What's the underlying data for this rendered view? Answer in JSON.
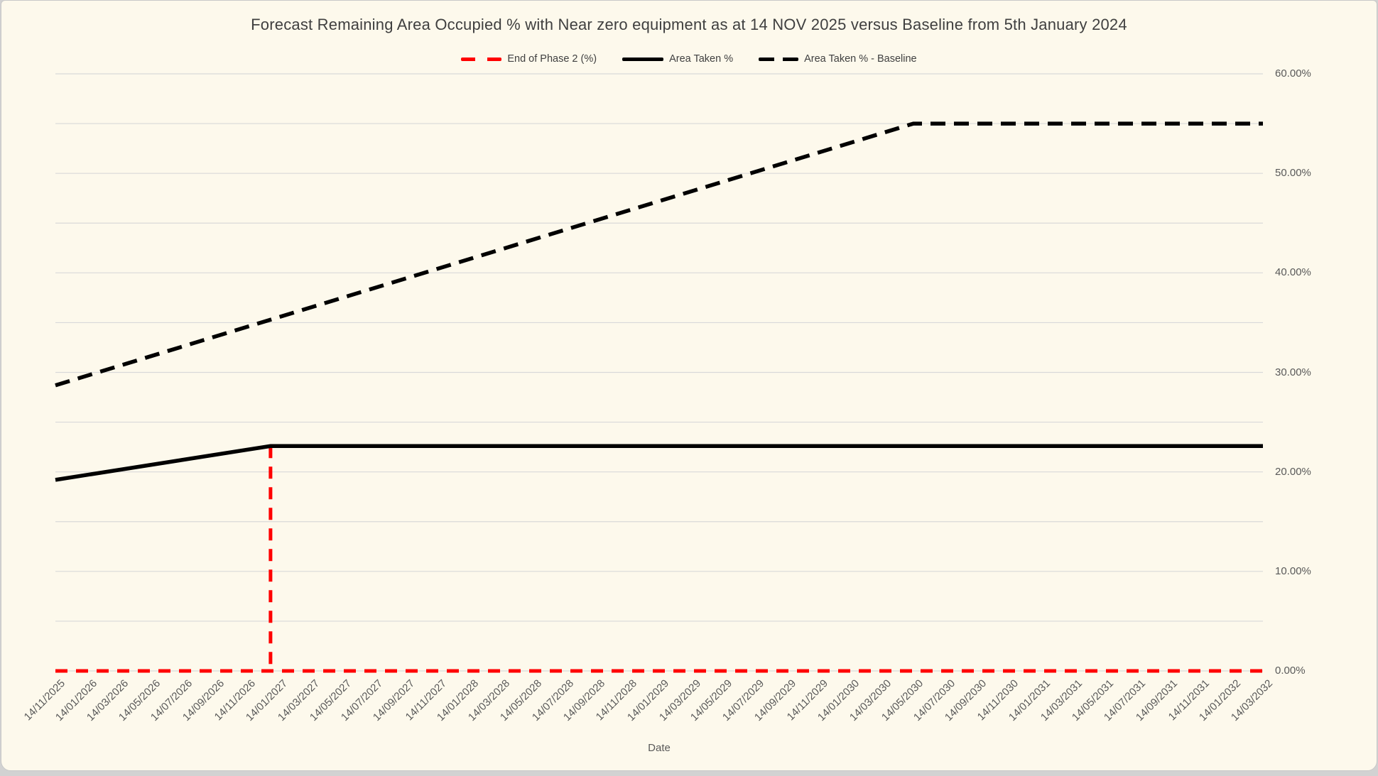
{
  "legend": [
    {
      "label": "End of Phase 2 (%)",
      "color": "#FF0000",
      "style": "dashed"
    },
    {
      "label": "Area Taken %",
      "color": "#000000",
      "style": "solid"
    },
    {
      "label": "Area Taken % - Baseline",
      "color": "#000000",
      "style": "dashed"
    }
  ],
  "chart_data": {
    "type": "line",
    "title": "Forecast Remaining Area Occupied % with Near zero equipment as at 14 NOV 2025 versus Baseline from 5th January 2024",
    "xlabel": "Date",
    "ylabel": "",
    "ylim": [
      0,
      60
    ],
    "grid": true,
    "gridline_step_pct": 5,
    "legend_position": "top-center",
    "y_ticks": [
      {
        "value": 0,
        "label": "0.00%"
      },
      {
        "value": 10,
        "label": "10.00%"
      },
      {
        "value": 20,
        "label": "20.00%"
      },
      {
        "value": 30,
        "label": "30.00%"
      },
      {
        "value": 40,
        "label": "40.00%"
      },
      {
        "value": 50,
        "label": "50.00%"
      },
      {
        "value": 60,
        "label": "60.00%"
      }
    ],
    "categories": [
      "14/11/2025",
      "14/01/2026",
      "14/03/2026",
      "14/05/2026",
      "14/07/2026",
      "14/09/2026",
      "14/11/2026",
      "14/01/2027",
      "14/03/2027",
      "14/05/2027",
      "14/07/2027",
      "14/09/2027",
      "14/11/2027",
      "14/01/2028",
      "14/03/2028",
      "14/05/2028",
      "14/07/2028",
      "14/09/2028",
      "14/11/2028",
      "14/01/2029",
      "14/03/2029",
      "14/05/2029",
      "14/07/2029",
      "14/09/2029",
      "14/11/2029",
      "14/01/2030",
      "14/03/2030",
      "14/05/2030",
      "14/07/2030",
      "14/09/2030",
      "14/11/2030",
      "14/01/2031",
      "14/03/2031",
      "14/05/2031",
      "14/07/2031",
      "14/09/2031",
      "14/11/2031",
      "14/01/2032",
      "14/03/2032"
    ],
    "series": [
      {
        "name": "End of Phase 2 (%)",
        "color": "#FF0000",
        "line_style": "dashed",
        "line_width": 5,
        "dash": [
          17,
          12
        ],
        "values": [
          0,
          0,
          0,
          0,
          0,
          0,
          0,
          0,
          0,
          0,
          0,
          0,
          0,
          0,
          0,
          0,
          0,
          0,
          0,
          0,
          0,
          0,
          0,
          0,
          0,
          0,
          0,
          0,
          0,
          0,
          0,
          0,
          0,
          0,
          0,
          0,
          0,
          0,
          0
        ],
        "vertical_marker": {
          "x_index": 6.77,
          "from_pct": 0,
          "to_pct": 22.6
        }
      },
      {
        "name": "Area Taken %",
        "color": "#000000",
        "line_style": "solid",
        "line_width": 5.5,
        "anchors": [
          [
            0,
            19.2
          ],
          [
            6.77,
            22.6
          ],
          [
            38,
            22.6
          ]
        ],
        "values": [
          19.2,
          19.7,
          20.2,
          20.7,
          21.2,
          21.7,
          22.2,
          22.6,
          22.6,
          22.6,
          22.6,
          22.6,
          22.6,
          22.6,
          22.6,
          22.6,
          22.6,
          22.6,
          22.6,
          22.6,
          22.6,
          22.6,
          22.6,
          22.6,
          22.6,
          22.6,
          22.6,
          22.6,
          22.6,
          22.6,
          22.6,
          22.6,
          22.6,
          22.6,
          22.6,
          22.6,
          22.6,
          22.6,
          22.6
        ]
      },
      {
        "name": "Area Taken % - Baseline",
        "color": "#000000",
        "line_style": "dashed",
        "line_width": 5.5,
        "dash": [
          21,
          12
        ],
        "anchors": [
          [
            0,
            28.7
          ],
          [
            27,
            55.0
          ],
          [
            38,
            55.0
          ]
        ],
        "values": [
          28.7,
          29.7,
          30.6,
          31.6,
          32.6,
          33.6,
          34.5,
          35.5,
          36.5,
          37.5,
          38.4,
          39.4,
          40.4,
          41.4,
          42.3,
          43.3,
          44.3,
          45.3,
          46.2,
          47.2,
          48.2,
          49.1,
          50.1,
          51.1,
          52.1,
          53.0,
          54.0,
          55.0,
          55.0,
          55.0,
          55.0,
          55.0,
          55.0,
          55.0,
          55.0,
          55.0,
          55.0,
          55.0,
          55.0
        ]
      }
    ]
  },
  "colors": {
    "background": "#FDF9EC",
    "page_backdrop": "#D2D2D2",
    "card_border": "#C8C8C8",
    "gridline": "#D9D9D9",
    "title_text": "#3F3F3F",
    "axis_text": "#595959",
    "red": "#FF0000",
    "black": "#000000"
  }
}
